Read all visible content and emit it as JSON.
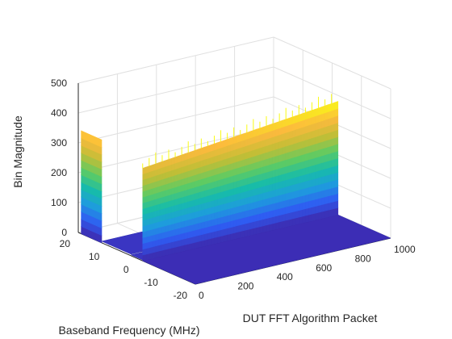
{
  "chart_data": {
    "type": "surface3d",
    "title": "",
    "xlabel": "DUT FFT Algorithm Packet",
    "ylabel": "Baseband Frequency (MHz)",
    "zlabel": "Bin Magnitude",
    "xlim": [
      0,
      1000
    ],
    "ylim": [
      -20,
      20
    ],
    "zlim": [
      0,
      500
    ],
    "x_ticks": [
      "0",
      "200",
      "400",
      "600",
      "800",
      "1000"
    ],
    "y_ticks": [
      "-20",
      "-10",
      "0",
      "10",
      "20"
    ],
    "z_ticks": [
      "0",
      "100",
      "200",
      "300",
      "400",
      "500"
    ],
    "grid": true,
    "colormap": [
      "#3e26a8",
      "#2f5cf2",
      "#1e9cdd",
      "#17bca9",
      "#5ecb63",
      "#c1be36",
      "#fcba3d",
      "#f9fb15"
    ],
    "regions": [
      {
        "x_range": [
          0,
          1000
        ],
        "y_range": [
          -20,
          -2
        ],
        "magnitude": 0
      },
      {
        "x_range": [
          0,
          1000
        ],
        "y_range": [
          -2,
          2
        ],
        "magnitude": 3
      },
      {
        "x_range": [
          0,
          1000
        ],
        "y_range": [
          2,
          12
        ],
        "magnitude": 5
      },
      {
        "x_range": [
          0,
          260
        ],
        "y_range": [
          12,
          19
        ],
        "magnitude": 345
      }
    ],
    "ramps": [
      {
        "y_range": [
          -20,
          -2
        ],
        "magnitude_start": 310,
        "magnitude_end": 380,
        "x_start": 0,
        "x_end": 1000
      }
    ]
  }
}
